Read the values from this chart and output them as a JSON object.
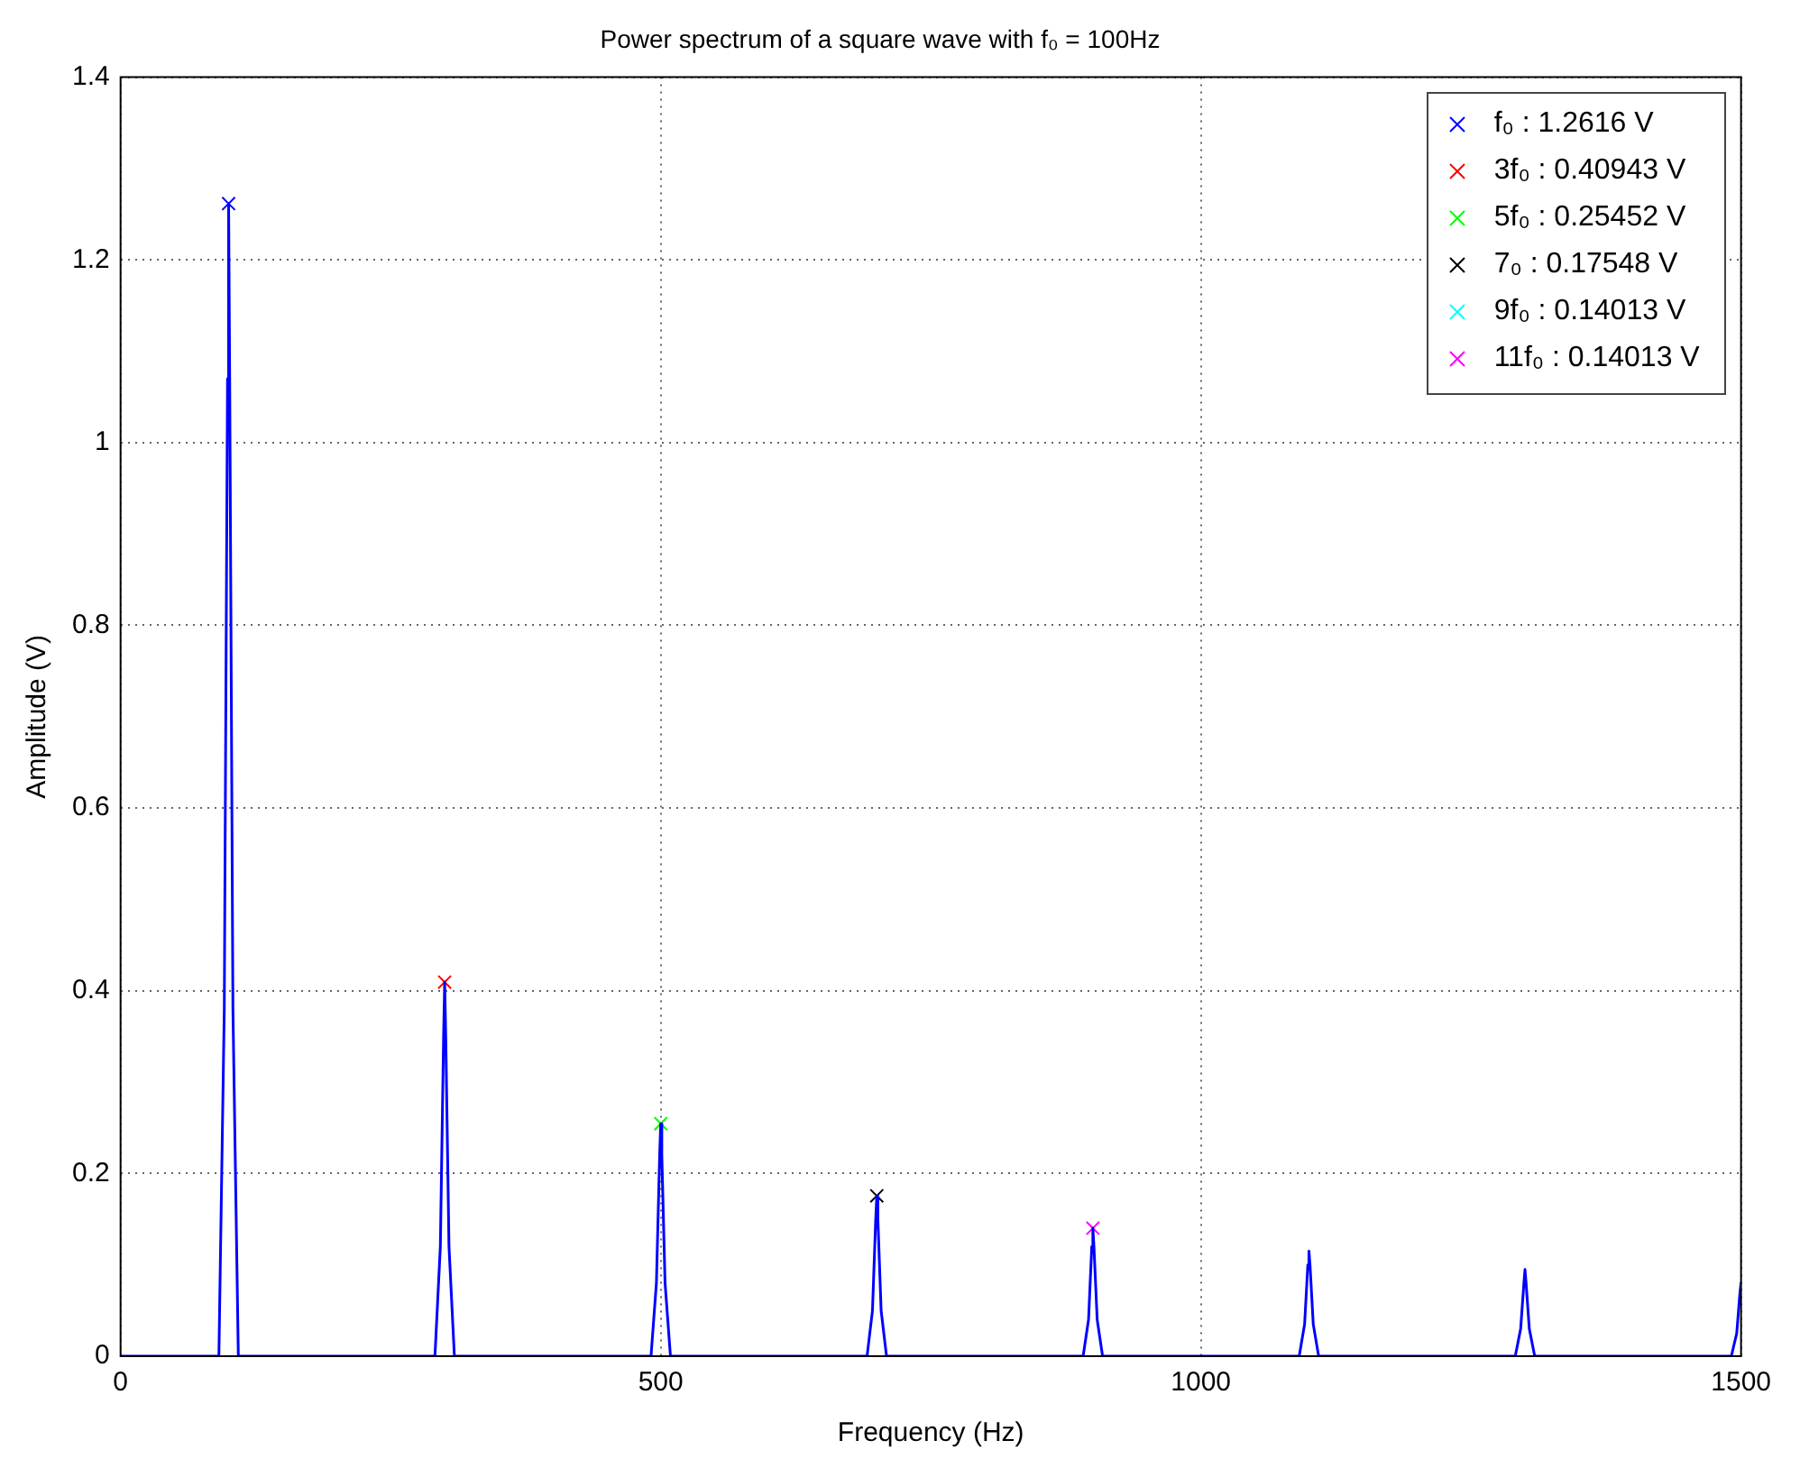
{
  "chart_data": {
    "type": "line",
    "title": "Power spectrum of a square wave with f₀ = 100Hz",
    "xlabel": "Frequency (Hz)",
    "ylabel": "Amplitude (V)",
    "xlim": [
      0,
      1500
    ],
    "xticks": [
      0,
      500,
      1000,
      1500
    ],
    "ylim": [
      0,
      1.4
    ],
    "yticks": [
      0,
      0.2,
      0.4,
      0.6,
      0.8,
      1,
      1.2,
      1.4
    ],
    "grid": true,
    "legend": "top right",
    "line_style": "solid",
    "series": [
      {
        "color": "#0000ff",
        "marker": "none",
        "x": [
          0,
          91,
          96,
          99,
          100,
          101,
          104,
          109,
          291,
          296,
          299,
          300,
          301,
          304,
          309,
          491,
          496,
          499,
          500,
          501,
          504,
          509,
          691,
          696,
          699,
          700,
          701,
          704,
          709,
          891,
          896,
          899,
          900,
          901,
          904,
          909,
          1091,
          1096,
          1099,
          1100,
          1101,
          1104,
          1109,
          1291,
          1296,
          1299,
          1300,
          1301,
          1304,
          1309,
          1491,
          1496,
          1499,
          1500
        ],
        "values": [
          0,
          0,
          0.38,
          1.07,
          1.2616,
          1.07,
          0.38,
          0,
          0,
          0.12,
          0.35,
          0.40943,
          0.35,
          0.12,
          0,
          0,
          0.08,
          0.22,
          0.25452,
          0.22,
          0.08,
          0,
          0,
          0.05,
          0.15,
          0.17548,
          0.15,
          0.05,
          0,
          0,
          0.04,
          0.12,
          0.14013,
          0.12,
          0.04,
          0,
          0,
          0.035,
          0.1,
          0.115,
          0.1,
          0.035,
          0,
          0,
          0.03,
          0.08,
          0.095,
          0.08,
          0.03,
          0,
          0,
          0.025,
          0.07,
          0.08
        ]
      },
      {
        "type": "scatter",
        "name": "f₀ : 1.2616 V",
        "color": "#0000ff",
        "marker": "cross",
        "x": [
          100
        ],
        "values": [
          1.2616
        ]
      },
      {
        "type": "scatter",
        "name": "3f₀ : 0.40943 V",
        "color": "#ff0000",
        "marker": "cross",
        "x": [
          300
        ],
        "values": [
          0.40943
        ]
      },
      {
        "type": "scatter",
        "name": "5f₀ : 0.25452 V",
        "color": "#00ff00",
        "marker": "cross",
        "x": [
          500
        ],
        "values": [
          0.25452
        ]
      },
      {
        "type": "scatter",
        "name": "7₀ : 0.17548 V",
        "color": "#000000",
        "marker": "cross",
        "x": [
          700
        ],
        "values": [
          0.17548
        ]
      },
      {
        "type": "scatter",
        "name": "9f₀ : 0.14013 V",
        "color": "#00ffff",
        "marker": "cross"
      },
      {
        "type": "scatter",
        "name": "11f₀ : 0.14013 V",
        "color": "#ff00ff",
        "marker": "cross",
        "x": [
          900
        ],
        "values": [
          0.14013
        ]
      }
    ]
  }
}
